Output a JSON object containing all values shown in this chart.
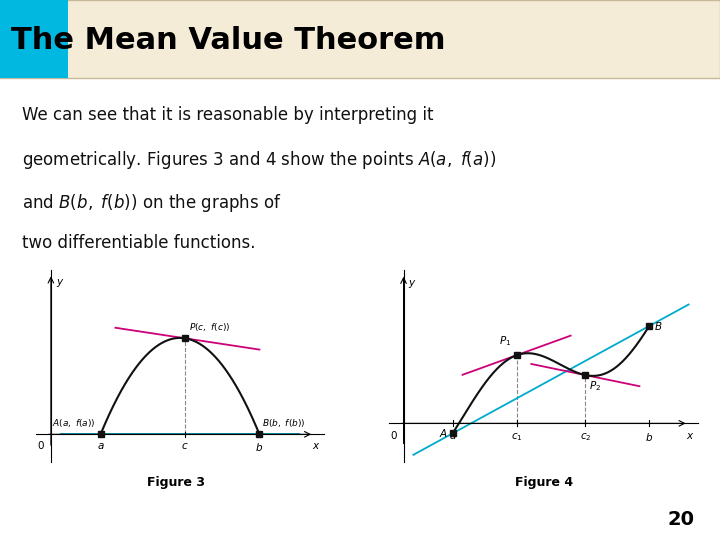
{
  "title": "The Mean Value Theorem",
  "title_bg_color": "#f5ecd7",
  "title_square_color": "#00b8e0",
  "title_fontsize": 22,
  "title_text_color": "#000000",
  "body_fontsize": 12,
  "figure3_caption": "Figure 3",
  "figure4_caption": "Figure 4",
  "page_number": "20",
  "bg_color": "#ffffff",
  "secant_color": "#00aacc",
  "tangent_color": "#cc0077",
  "curve_color": "#111111",
  "border_color": "#c8b89a"
}
